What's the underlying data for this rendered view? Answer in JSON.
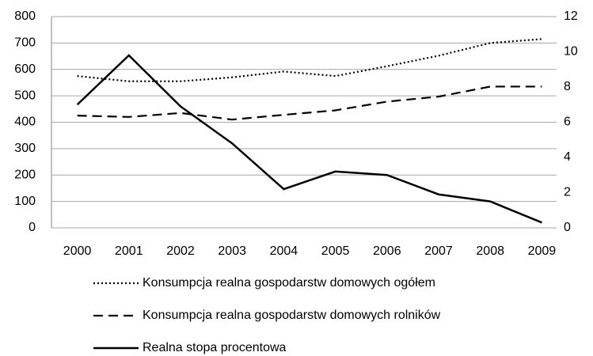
{
  "chart_data": {
    "type": "line",
    "categories": [
      "2000",
      "2001",
      "2002",
      "2003",
      "2004",
      "2005",
      "2006",
      "2007",
      "2008",
      "2009"
    ],
    "series": [
      {
        "name": "Konsumpcja realna gospodarstw domowych ogółem",
        "color": "#000000",
        "line_style": "dotted",
        "axis": "y",
        "values": [
          575,
          555,
          555,
          570,
          592,
          575,
          612,
          652,
          700,
          715
        ]
      },
      {
        "name": "Konsumpcja realna gospodarstw domowych rolników",
        "color": "#000000",
        "line_style": "dashed",
        "axis": "y",
        "values": [
          425,
          420,
          435,
          410,
          428,
          445,
          478,
          497,
          535,
          535
        ]
      },
      {
        "name": "Realna stopa procentowa",
        "color": "#000000",
        "line_style": "solid",
        "axis": "y2",
        "values": [
          7.0,
          9.8,
          6.9,
          4.8,
          2.2,
          3.2,
          3.0,
          1.9,
          1.5,
          0.3
        ]
      }
    ],
    "ylim": [
      0,
      800
    ],
    "yticks": [
      0,
      100,
      200,
      300,
      400,
      500,
      600,
      700,
      800
    ],
    "y2lim": [
      0,
      12
    ],
    "y2ticks": [
      0,
      2,
      4,
      6,
      8,
      10,
      12
    ],
    "grid": true,
    "legend": "bottom"
  }
}
